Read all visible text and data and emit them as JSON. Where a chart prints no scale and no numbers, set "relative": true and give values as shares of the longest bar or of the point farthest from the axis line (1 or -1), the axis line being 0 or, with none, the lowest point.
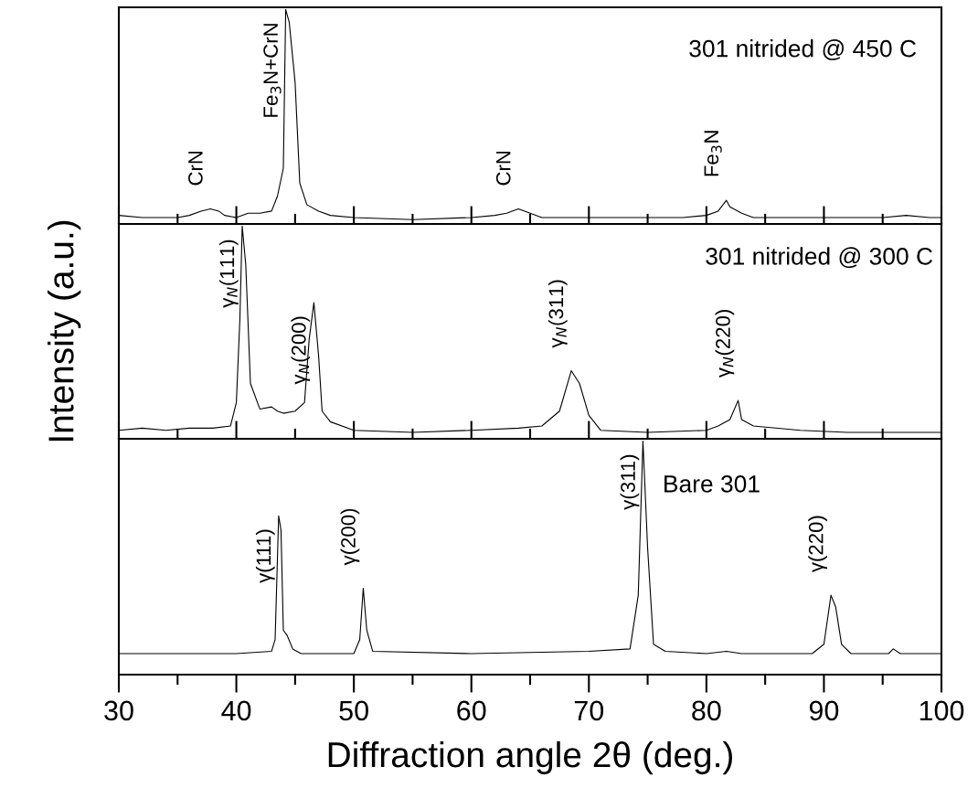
{
  "chart_data": [
    {
      "type": "line",
      "relative": true,
      "tick_labels": false,
      "xlim": [
        30,
        100
      ],
      "xticks": [
        30,
        {
          "value": 35,
          "label": null
        },
        40,
        {
          "value": 45,
          "label": null
        },
        50,
        {
          "value": 55,
          "label": null
        },
        60,
        {
          "value": 65,
          "label": null
        },
        70,
        {
          "value": 75,
          "label": null
        },
        80,
        {
          "value": 85,
          "label": null
        },
        90,
        {
          "value": 95,
          "label": null
        },
        100
      ],
      "series": [
        {
          "color": "#000000",
          "x": [
            30,
            32,
            34,
            35,
            36,
            37,
            37.8,
            38.5,
            39,
            40,
            41,
            42,
            43,
            43.5,
            44,
            44.2,
            44.5,
            45,
            45.4,
            46,
            47,
            48,
            50,
            55,
            60,
            62,
            63,
            64,
            65,
            66,
            70,
            75,
            78,
            80,
            81,
            81.7,
            82,
            83,
            84,
            88,
            92,
            95,
            97,
            99,
            100
          ],
          "values": [
            0.04,
            0.03,
            0.03,
            0.03,
            0.04,
            0.06,
            0.07,
            0.06,
            0.04,
            0.03,
            0.05,
            0.05,
            0.06,
            0.13,
            0.26,
            1.0,
            0.94,
            0.66,
            0.19,
            0.09,
            0.06,
            0.04,
            0.03,
            0.02,
            0.03,
            0.04,
            0.05,
            0.07,
            0.05,
            0.03,
            0.03,
            0.03,
            0.03,
            0.04,
            0.06,
            0.11,
            0.08,
            0.05,
            0.03,
            0.03,
            0.03,
            0.03,
            0.04,
            0.03,
            0.03
          ]
        }
      ],
      "annotations": [
        "301 nitrided @ 450 C",
        {
          "text": "CrN",
          "x": 37.8,
          "y": 0.07
        },
        {
          "text": "Fe$_{3}$N+CrN",
          "x": 44.2,
          "y": 1.0
        },
        {
          "text": "CrN",
          "x": 64,
          "y": 0.07
        },
        {
          "text": "Fe$_{3}$N",
          "x": 81.7,
          "y": 0.11
        }
      ]
    },
    {
      "type": "line",
      "relative": true,
      "tick_labels": false,
      "xlim": [
        30,
        100
      ],
      "ylabel": "Intensity (a.u.)",
      "xticks": [
        30,
        {
          "value": 35,
          "label": null
        },
        40,
        {
          "value": 45,
          "label": null
        },
        50,
        {
          "value": 55,
          "label": null
        },
        60,
        {
          "value": 65,
          "label": null
        },
        70,
        {
          "value": 75,
          "label": null
        },
        80,
        {
          "value": 85,
          "label": null
        },
        90,
        {
          "value": 95,
          "label": null
        },
        100
      ],
      "series": [
        {
          "color": "#000000",
          "x": [
            30,
            32,
            34,
            36,
            38,
            39.5,
            40,
            40.3,
            40.5,
            40.8,
            41.2,
            42,
            43,
            43.5,
            44,
            45,
            45.8,
            46.2,
            46.6,
            47,
            47.3,
            48,
            50,
            55,
            60,
            64,
            66,
            67.5,
            68.5,
            69.2,
            70,
            71,
            75,
            80,
            81,
            82,
            82.7,
            83,
            84,
            88,
            92,
            96,
            100
          ],
          "values": [
            0.04,
            0.05,
            0.04,
            0.05,
            0.05,
            0.06,
            0.17,
            0.56,
            1.0,
            0.82,
            0.26,
            0.14,
            0.15,
            0.13,
            0.12,
            0.13,
            0.17,
            0.47,
            0.64,
            0.39,
            0.13,
            0.08,
            0.04,
            0.03,
            0.04,
            0.05,
            0.06,
            0.13,
            0.32,
            0.26,
            0.11,
            0.04,
            0.03,
            0.04,
            0.06,
            0.09,
            0.18,
            0.09,
            0.06,
            0.04,
            0.03,
            0.03,
            0.03
          ]
        }
      ],
      "annotations": [
        "301 nitrided @ 300 C",
        {
          "text": "γ$_{N}$(111)",
          "x": 40.5,
          "y": 1.0
        },
        {
          "text": "γ$_{N}$(200)",
          "x": 46.6,
          "y": 0.64
        },
        {
          "text": "γ$_{N}$(311)",
          "x": 68.5,
          "y": 0.32
        },
        {
          "text": "γ$_{N}$(220)",
          "x": 82.7,
          "y": 0.18
        }
      ]
    },
    {
      "type": "line",
      "relative": true,
      "tick_labels": "x",
      "xlim": [
        30,
        100
      ],
      "xlabel": "Diffraction angle 2θ (deg.)",
      "xticks": [
        30,
        {
          "value": 35,
          "label": null
        },
        40,
        {
          "value": 45,
          "label": null
        },
        50,
        {
          "value": 55,
          "label": null
        },
        60,
        {
          "value": 65,
          "label": null
        },
        70,
        {
          "value": 75,
          "label": null
        },
        80,
        {
          "value": 85,
          "label": null
        },
        90,
        {
          "value": 95,
          "label": null
        },
        100
      ],
      "series": [
        {
          "color": "#000000",
          "x": [
            30,
            40,
            43,
            43.3,
            43.6,
            43.8,
            44,
            44.3,
            44.8,
            45.5,
            50,
            50.5,
            50.8,
            51.1,
            51.6,
            60,
            70,
            73.5,
            74.2,
            74.6,
            75,
            75.5,
            76.5,
            80,
            81.7,
            83,
            89,
            90,
            90.6,
            91,
            91.5,
            92.3,
            95.5,
            95.9,
            96.5,
            100
          ],
          "values": [
            0.09,
            0.09,
            0.1,
            0.15,
            0.68,
            0.62,
            0.19,
            0.17,
            0.11,
            0.09,
            0.09,
            0.15,
            0.37,
            0.19,
            0.1,
            0.09,
            0.1,
            0.11,
            0.34,
            1.0,
            0.54,
            0.13,
            0.1,
            0.09,
            0.1,
            0.09,
            0.09,
            0.13,
            0.34,
            0.29,
            0.13,
            0.09,
            0.09,
            0.11,
            0.09,
            0.09
          ]
        }
      ],
      "annotations": [
        "Bare 301",
        {
          "text": "γ(111)",
          "x": 43.6,
          "y": 0.68
        },
        {
          "text": "γ(200)",
          "x": 50.8,
          "y": 0.37
        },
        {
          "text": "γ(311)",
          "x": 74.6,
          "y": 1.0
        },
        {
          "text": "γ(220)",
          "x": 90.6,
          "y": 0.34
        }
      ]
    }
  ]
}
